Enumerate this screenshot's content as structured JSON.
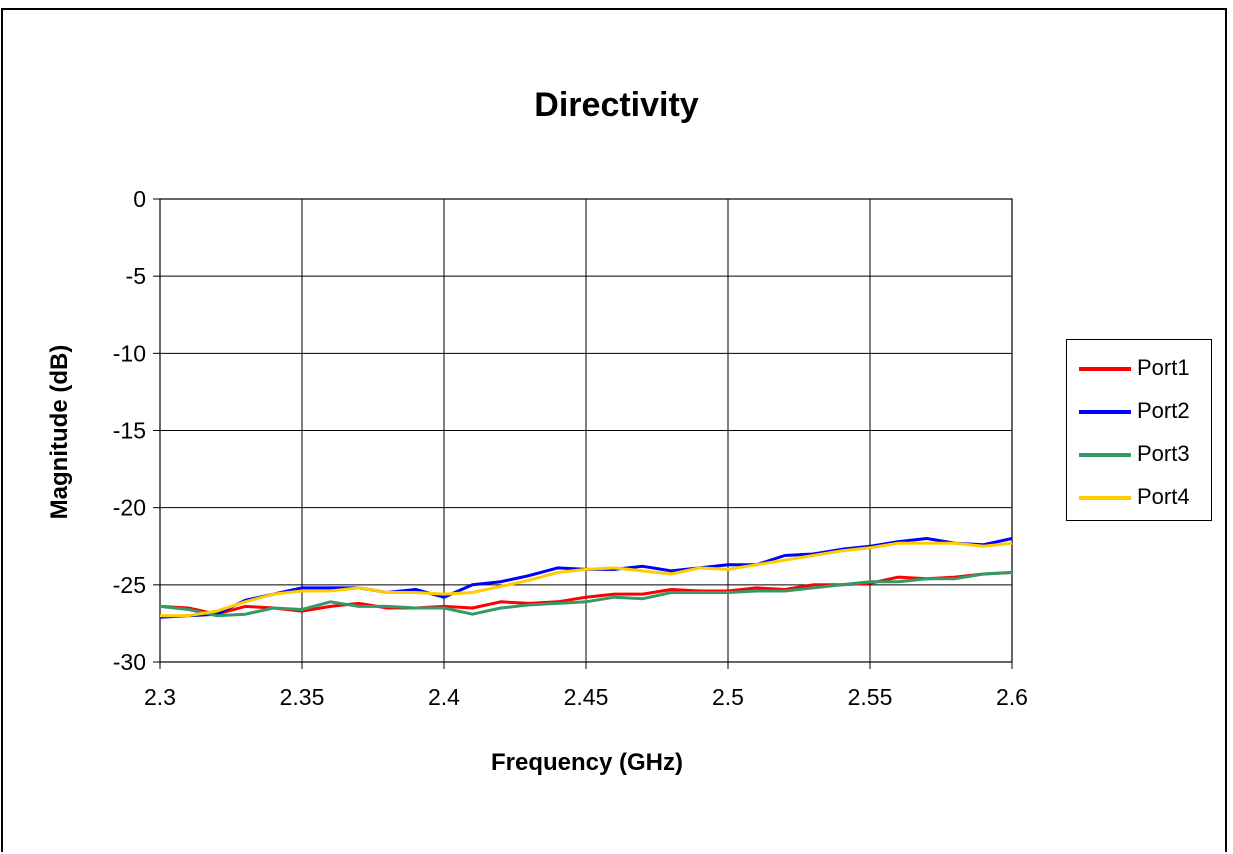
{
  "chart_data": {
    "type": "line",
    "title": "Directivity",
    "xlabel": "Frequency (GHz)",
    "ylabel": "Magnitude (dB)",
    "xlim": [
      2.3,
      2.6
    ],
    "ylim": [
      -30,
      0
    ],
    "x_ticks": [
      "2.3",
      "2.35",
      "2.4",
      "2.45",
      "2.5",
      "2.55",
      "2.6"
    ],
    "y_ticks": [
      "0",
      "-5",
      "-10",
      "-15",
      "-20",
      "-25",
      "-30"
    ],
    "grid": true,
    "legend_position": "right",
    "x": [
      2.3,
      2.31,
      2.32,
      2.33,
      2.34,
      2.35,
      2.36,
      2.37,
      2.38,
      2.39,
      2.4,
      2.41,
      2.42,
      2.43,
      2.44,
      2.45,
      2.46,
      2.47,
      2.48,
      2.49,
      2.5,
      2.51,
      2.52,
      2.53,
      2.54,
      2.55,
      2.56,
      2.57,
      2.58,
      2.59,
      2.6
    ],
    "series": [
      {
        "name": "Port1",
        "color": "#ff0000",
        "values": [
          -26.4,
          -26.5,
          -26.9,
          -26.4,
          -26.5,
          -26.7,
          -26.4,
          -26.2,
          -26.5,
          -26.5,
          -26.4,
          -26.5,
          -26.1,
          -26.2,
          -26.1,
          -25.8,
          -25.6,
          -25.6,
          -25.3,
          -25.4,
          -25.4,
          -25.2,
          -25.3,
          -25.0,
          -25.0,
          -24.9,
          -24.5,
          -24.6,
          -24.5,
          -24.3,
          -24.2
        ]
      },
      {
        "name": "Port2",
        "color": "#0000ff",
        "values": [
          -27.1,
          -27.0,
          -26.9,
          -26.0,
          -25.6,
          -25.2,
          -25.2,
          -25.2,
          -25.5,
          -25.3,
          -25.8,
          -25.0,
          -24.8,
          -24.4,
          -23.9,
          -24.0,
          -24.0,
          -23.8,
          -24.1,
          -23.9,
          -23.7,
          -23.7,
          -23.1,
          -23.0,
          -22.7,
          -22.5,
          -22.2,
          -22.0,
          -22.3,
          -22.4,
          -22.0
        ]
      },
      {
        "name": "Port3",
        "color": "#339966",
        "values": [
          -26.4,
          -26.6,
          -27.0,
          -26.9,
          -26.5,
          -26.6,
          -26.1,
          -26.4,
          -26.4,
          -26.5,
          -26.5,
          -26.9,
          -26.5,
          -26.3,
          -26.2,
          -26.1,
          -25.8,
          -25.9,
          -25.5,
          -25.5,
          -25.5,
          -25.4,
          -25.4,
          -25.2,
          -25.0,
          -24.8,
          -24.8,
          -24.6,
          -24.6,
          -24.3,
          -24.2
        ]
      },
      {
        "name": "Port4",
        "color": "#ffcc00",
        "values": [
          -27.0,
          -27.0,
          -26.7,
          -26.1,
          -25.6,
          -25.4,
          -25.4,
          -25.2,
          -25.5,
          -25.5,
          -25.6,
          -25.5,
          -25.1,
          -24.7,
          -24.2,
          -24.0,
          -23.9,
          -24.1,
          -24.3,
          -23.9,
          -24.0,
          -23.7,
          -23.4,
          -23.1,
          -22.8,
          -22.6,
          -22.3,
          -22.3,
          -22.3,
          -22.5,
          -22.3
        ]
      }
    ]
  }
}
